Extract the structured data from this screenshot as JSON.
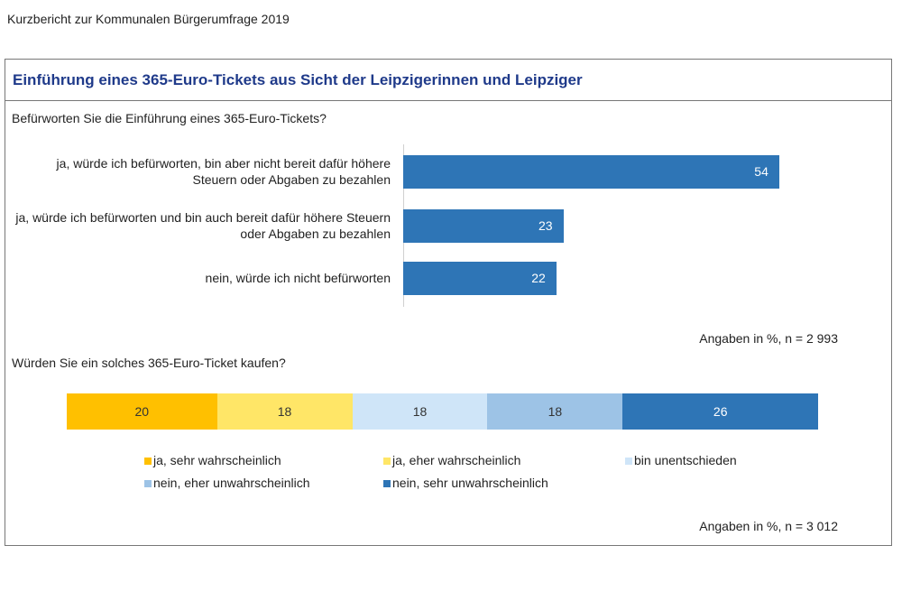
{
  "header": "Kurzbericht zur Kommunalen Bürgerumfrage 2019",
  "title": "Einführung eines 365-Euro-Tickets aus Sicht der Leipzigerinnen und Leipziger",
  "chart_data": [
    {
      "type": "bar",
      "orientation": "horizontal",
      "title": "Befürworten Sie die Einführung eines 365-Euro-Tickets?",
      "categories": [
        "ja, würde ich befürworten, bin aber nicht bereit dafür höhere Steuern oder Abgaben zu bezahlen",
        "ja, würde ich befürworten und bin auch bereit dafür höhere Steuern oder Abgaben zu bezahlen",
        "nein, würde ich nicht befürworten"
      ],
      "values": [
        54,
        23,
        22
      ],
      "color": "#2e75b6",
      "note": "Angaben in %, n = 2 993"
    },
    {
      "type": "stacked_bar",
      "orientation": "horizontal",
      "title": "Würden Sie ein solches 365-Euro-Ticket kaufen?",
      "series": [
        {
          "name": "ja, sehr wahrscheinlich",
          "color": "#ffc000",
          "values": [
            20
          ]
        },
        {
          "name": "ja, eher wahrscheinlich",
          "color": "#ffe667",
          "values": [
            18
          ]
        },
        {
          "name": "bin unentschieden",
          "color": "#cfe5f8",
          "values": [
            18
          ]
        },
        {
          "name": "nein, eher unwahrscheinlich",
          "color": "#9dc3e6",
          "values": [
            18
          ]
        },
        {
          "name": "nein, sehr unwahrscheinlich",
          "color": "#2e75b6",
          "values": [
            26
          ]
        }
      ],
      "note": "Angaben in %, n = 3 012"
    }
  ]
}
